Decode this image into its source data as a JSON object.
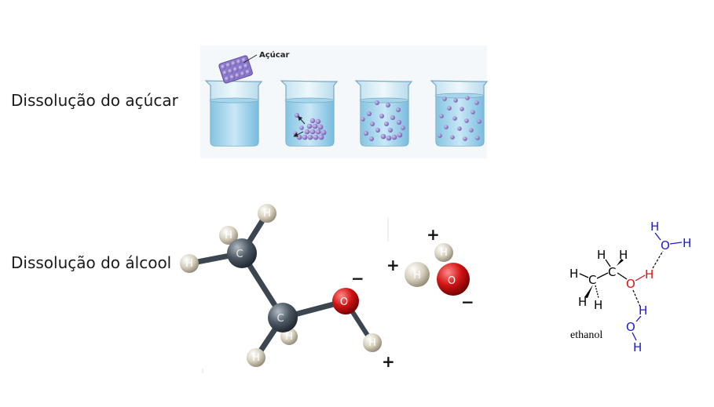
{
  "labels": {
    "sugar_dissolution": "Dissolução do açúcar",
    "alcohol_dissolution": "Dissolução do álcool"
  },
  "sugar_panel": {
    "sugar_label": "Açúcar",
    "beaker_count": 4
  },
  "ball_model": {
    "carbon": "C",
    "oxygen": "O",
    "hydrogen": "H",
    "partial_negative": "−",
    "partial_positive": "+",
    "colors": {
      "carbon": "#4a5560",
      "oxygen": "#cc1010",
      "hydrogen": "#d8d2c0",
      "bond": "#3b4650"
    }
  },
  "structural": {
    "molecule_name": "ethanol",
    "carbon": "C",
    "oxygen": "O",
    "hydrogen": "H",
    "colors": {
      "organic": "#000000",
      "ethanol_OH": "#e01010",
      "water": "#1a1ad0"
    }
  }
}
